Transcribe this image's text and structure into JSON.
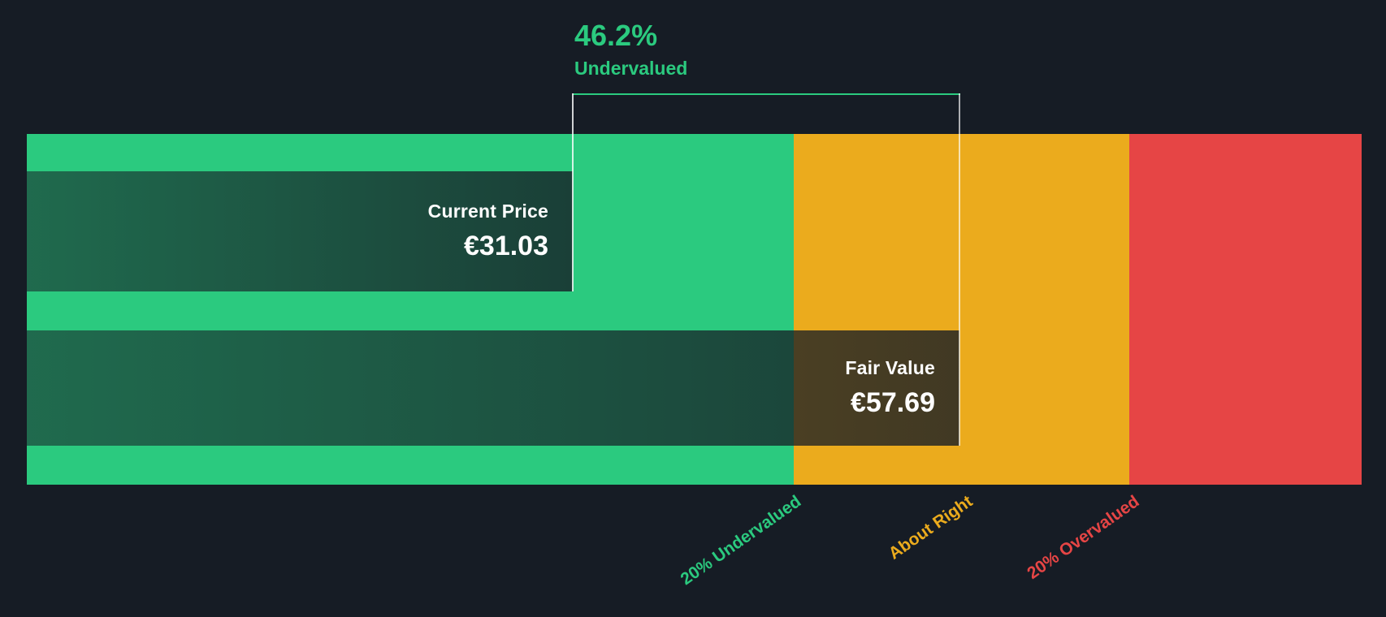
{
  "colors": {
    "background": "#161c25",
    "undervalued_green": "#2bca7f",
    "about_right_amber": "#ebab1d",
    "overvalued_red": "#e64545",
    "text_white": "#ffffff"
  },
  "annotation": {
    "percent": "46.2%",
    "label": "Undervalued"
  },
  "bars": {
    "current_price": {
      "label": "Current Price",
      "value": "€31.03"
    },
    "fair_value": {
      "label": "Fair Value",
      "value": "€57.69"
    }
  },
  "axis": {
    "zones": [
      {
        "id": "undervalued",
        "label": "20% Undervalued",
        "color": "#2bca7f"
      },
      {
        "id": "about_right",
        "label": "About Right",
        "color": "#ebab1d"
      },
      {
        "id": "overvalued",
        "label": "20% Overvalued",
        "color": "#e64545"
      }
    ]
  },
  "chart_data": {
    "type": "bar",
    "categories": [
      "Current Price",
      "Fair Value"
    ],
    "values": [
      31.03,
      57.69
    ],
    "currency": "€",
    "discount_percent": 46.2,
    "valuation_status": "Undervalued",
    "zones": [
      {
        "label": "20% Undervalued",
        "from": 0,
        "to": 46.15,
        "color": "#2bca7f"
      },
      {
        "label": "About Right",
        "from": 46.15,
        "to": 69.23,
        "color": "#ebab1d"
      },
      {
        "label": "20% Overvalued",
        "from": 69.23,
        "to": 85.3,
        "color": "#e64545"
      }
    ],
    "x_range": [
      -6.5,
      85.3
    ],
    "grid": false,
    "legend_position": "none"
  }
}
